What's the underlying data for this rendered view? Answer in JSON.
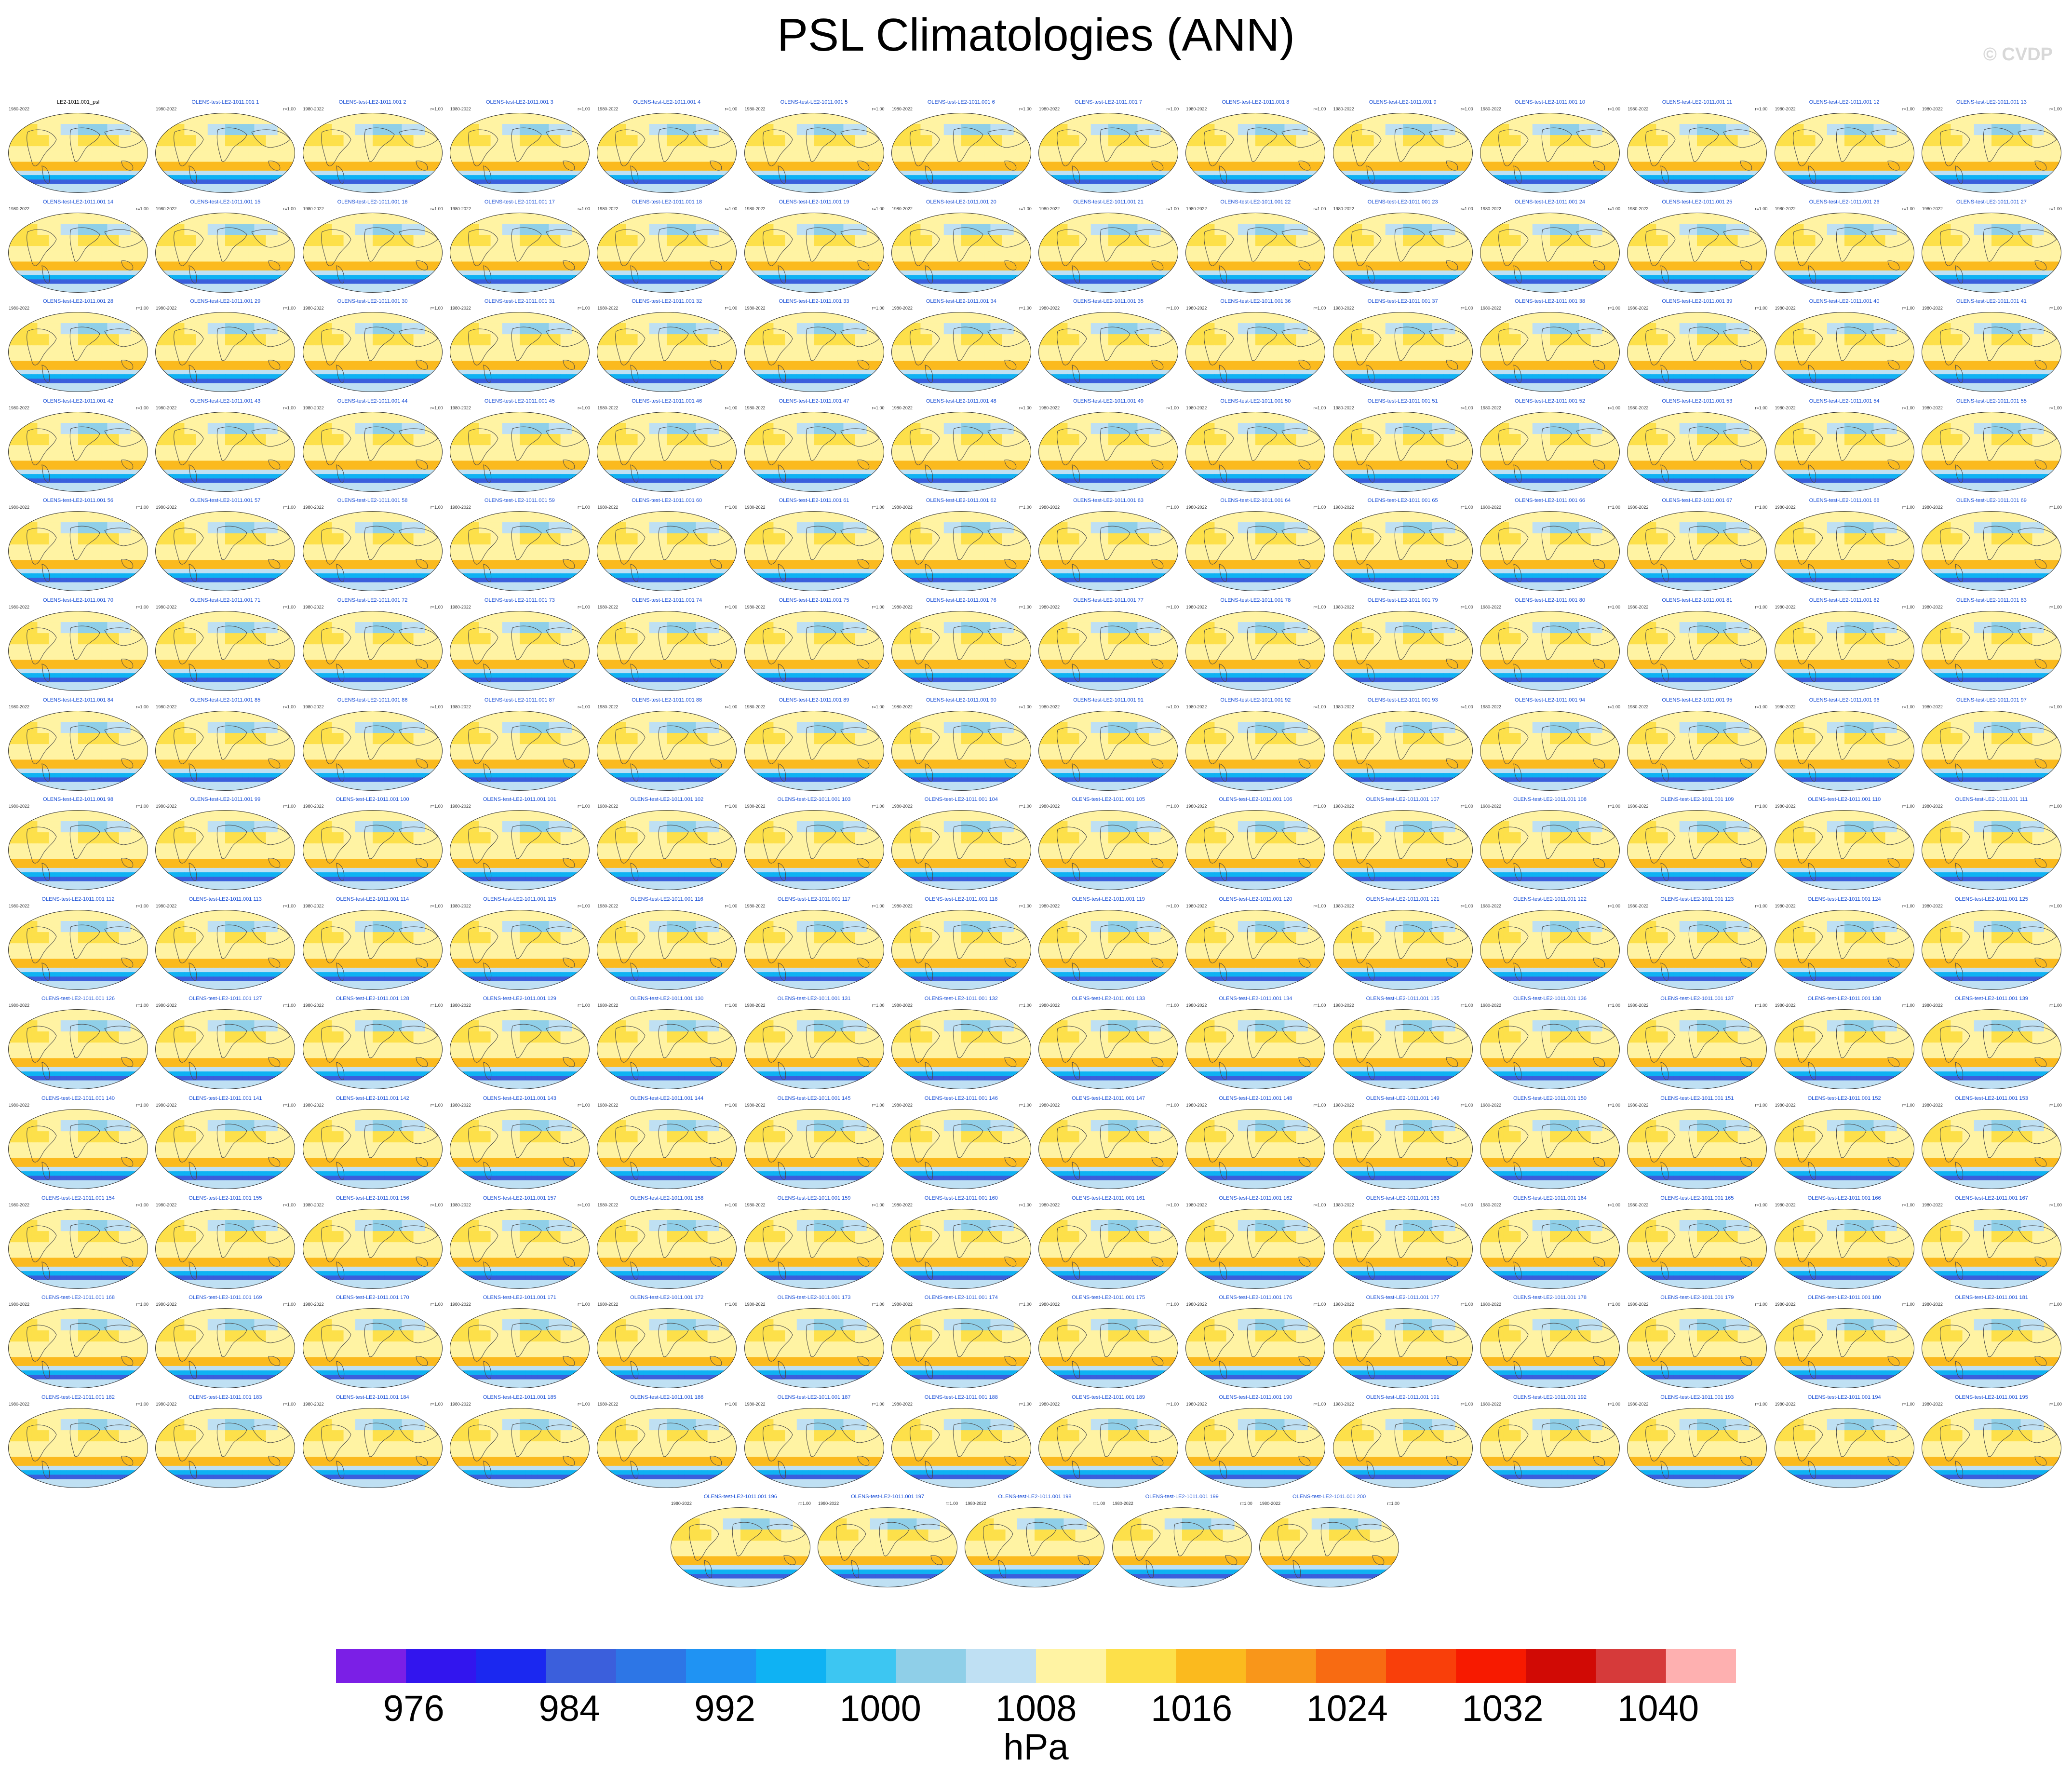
{
  "title": "PSL Climatologies (ANN)",
  "watermark": "© CVDP",
  "chart_data": {
    "type": "heatmap",
    "title": "PSL Climatologies (ANN)",
    "variable": "PSL",
    "season": "ANN",
    "units": "hPa",
    "projection": "global map (Robinson-like), Pacific-centered",
    "panel_years": "1980-2022",
    "panel_r_label": "r=1.00",
    "observation_panel": {
      "title": "LE2-1011.001_psl",
      "years": "1980-2022",
      "r": ""
    },
    "member_prefix": "OLENS-test-LE2-1011.001",
    "member_count": 200,
    "member_range": [
      1,
      200
    ],
    "layout": {
      "columns": 14,
      "full_rows": 14,
      "last_row_panels": 5
    },
    "colorbar": {
      "levels_min": 972,
      "levels_max": 1044,
      "interval": 4,
      "labels": [
        "976",
        "984",
        "992",
        "1000",
        "1008",
        "1016",
        "1024",
        "1032",
        "1040"
      ],
      "colors": [
        "#7b1fe6",
        "#3215ee",
        "#1b28f0",
        "#3b5fdc",
        "#2d76e6",
        "#1f93f3",
        "#0fb2f3",
        "#3dc6f2",
        "#8fcfe8",
        "#bfe0f3",
        "#fff3a3",
        "#fde04a",
        "#fbba1e",
        "#f9961a",
        "#f86b12",
        "#f93f0a",
        "#f71a00",
        "#d10a05",
        "#d63a3a",
        "#feb0b0"
      ]
    },
    "field_pattern": {
      "antarctic_trough_hPa": 984,
      "southern_ocean_hPa": 1000,
      "subtropical_high_hPa": 1020,
      "equatorial_hPa": 1010,
      "arctic_hPa": 1012
    }
  }
}
